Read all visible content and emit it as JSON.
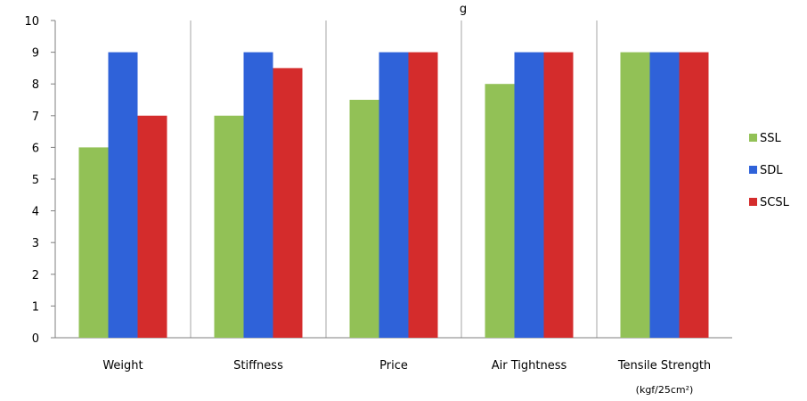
{
  "chart_data": {
    "type": "bar",
    "title": "g",
    "xlabel": "",
    "ylabel": "",
    "ylim": [
      0,
      10
    ],
    "yticks": [
      0,
      1,
      2,
      3,
      4,
      5,
      6,
      7,
      8,
      9,
      10
    ],
    "grid": "vertical separators between categories",
    "legend_position": "right",
    "categories": [
      "Weight",
      "Stiffness",
      "Price",
      "Air Tightness",
      "Tensile Strength"
    ],
    "category_sublabels": [
      "",
      "",
      "",
      "",
      "(kgf/25cm²)"
    ],
    "series": [
      {
        "name": "SSL",
        "color": "#92c156",
        "values": [
          6,
          7,
          7.5,
          8,
          9
        ]
      },
      {
        "name": "SDL",
        "color": "#2f62d9",
        "values": [
          9,
          9,
          9,
          9,
          9
        ]
      },
      {
        "name": "SCSL",
        "color": "#d42c2c",
        "values": [
          7,
          8.5,
          9,
          9,
          9
        ]
      }
    ]
  }
}
